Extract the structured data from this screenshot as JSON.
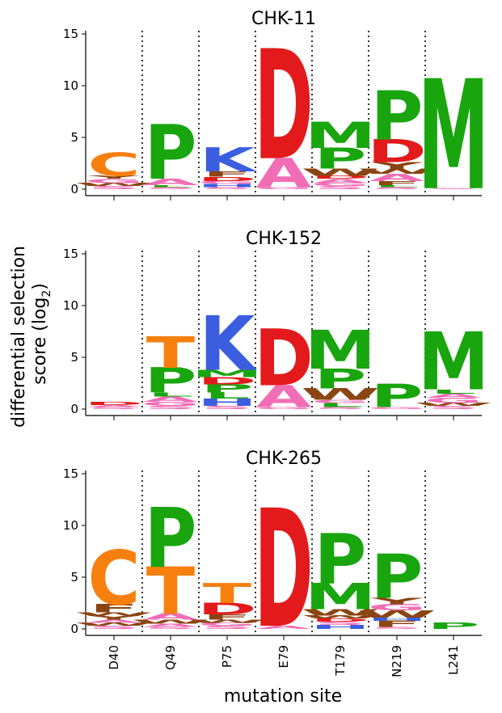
{
  "figure": {
    "ylabel_line1": "differential selection",
    "ylabel_line2_prefix": "score (log",
    "ylabel_line2_sub": "2",
    "ylabel_line2_suffix": ")",
    "xlabel": "mutation site"
  },
  "colors": {
    "C": "#f77f0e",
    "T": "#f77f0e",
    "P": "#19a50e",
    "M": "#19a50e",
    "A": "#f26db5",
    "G": "#f26db5",
    "S": "#f26db5",
    "D": "#e31a1c",
    "E": "#e31a1c",
    "K": "#3b5ee1",
    "H": "#3b5ee1",
    "R": "#3b5ee1",
    "W": "#8b4513",
    "Y": "#8b4513",
    "F": "#8b4513",
    "L": "#19a50e",
    "I": "#19a50e",
    "V": "#19a50e",
    "N": "#f26db5",
    "Q": "#f26db5"
  },
  "chart_data": [
    {
      "type": "logo",
      "title": "CHK-11",
      "categories": [
        "D40",
        "Q49",
        "P75",
        "E79",
        "T179",
        "N219",
        "L241"
      ],
      "ylim": [
        0,
        15
      ],
      "yticks": [
        "0",
        "5",
        "10",
        "15"
      ],
      "stacks": [
        [
          {
            "aa": "S",
            "value": 0.3
          },
          {
            "aa": "W",
            "value": 0.3
          },
          {
            "aa": "G",
            "value": 0.4
          },
          {
            "aa": "Y",
            "value": 0.3
          },
          {
            "aa": "C",
            "value": 2.2
          }
        ],
        [
          {
            "aa": "S",
            "value": 0.2
          },
          {
            "aa": "L",
            "value": 0.2
          },
          {
            "aa": "A",
            "value": 0.6
          },
          {
            "aa": "P",
            "value": 5.2
          }
        ],
        [
          {
            "aa": "S",
            "value": 0.2
          },
          {
            "aa": "H",
            "value": 0.3
          },
          {
            "aa": "G",
            "value": 0.3
          },
          {
            "aa": "D",
            "value": 0.4
          },
          {
            "aa": "F",
            "value": 0.5
          },
          {
            "aa": "K",
            "value": 2.3
          }
        ],
        [
          {
            "aa": "G",
            "value": 0.2
          },
          {
            "aa": "A",
            "value": 2.8
          },
          {
            "aa": "D",
            "value": 10.5
          }
        ],
        [
          {
            "aa": "S",
            "value": 0.3
          },
          {
            "aa": "G",
            "value": 0.3
          },
          {
            "aa": "A",
            "value": 0.4
          },
          {
            "aa": "D",
            "value": 0.3
          },
          {
            "aa": "W",
            "value": 0.7
          },
          {
            "aa": "P",
            "value": 2.0
          },
          {
            "aa": "M",
            "value": 2.5
          }
        ],
        [
          {
            "aa": "S",
            "value": 0.2
          },
          {
            "aa": "L",
            "value": 0.2
          },
          {
            "aa": "F",
            "value": 0.4
          },
          {
            "aa": "A",
            "value": 0.7
          },
          {
            "aa": "W",
            "value": 0.5
          },
          {
            "aa": "Y",
            "value": 0.6
          },
          {
            "aa": "D",
            "value": 2.2
          },
          {
            "aa": "P",
            "value": 4.7
          }
        ],
        [
          {
            "aa": "S",
            "value": 0.1
          },
          {
            "aa": "M",
            "value": 10.5
          }
        ]
      ]
    },
    {
      "type": "logo",
      "title": "CHK-152",
      "categories": [
        "D40",
        "Q49",
        "P75",
        "E79",
        "T179",
        "N219",
        "L241"
      ],
      "ylim": [
        0,
        15
      ],
      "yticks": [
        "0",
        "5",
        "10",
        "15"
      ],
      "stacks": [
        [
          {
            "aa": "S",
            "value": 0.2
          },
          {
            "aa": "A",
            "value": 0.2
          },
          {
            "aa": "D",
            "value": 0.3
          }
        ],
        [
          {
            "aa": "S",
            "value": 0.3
          },
          {
            "aa": "G",
            "value": 0.4
          },
          {
            "aa": "A",
            "value": 0.5
          },
          {
            "aa": "L",
            "value": 0.4
          },
          {
            "aa": "P",
            "value": 2.4
          },
          {
            "aa": "T",
            "value": 3.0
          }
        ],
        [
          {
            "aa": "S",
            "value": 0.3
          },
          {
            "aa": "H",
            "value": 0.7
          },
          {
            "aa": "L",
            "value": 0.6
          },
          {
            "aa": "P",
            "value": 0.8
          },
          {
            "aa": "D",
            "value": 0.7
          },
          {
            "aa": "M",
            "value": 0.7
          },
          {
            "aa": "K",
            "value": 5.2
          }
        ],
        [
          {
            "aa": "G",
            "value": 0.2
          },
          {
            "aa": "A",
            "value": 2.1
          },
          {
            "aa": "D",
            "value": 5.4
          }
        ],
        [
          {
            "aa": "S",
            "value": 0.2
          },
          {
            "aa": "L",
            "value": 0.4
          },
          {
            "aa": "G",
            "value": 0.3
          },
          {
            "aa": "W",
            "value": 1.1
          },
          {
            "aa": "P",
            "value": 1.9
          },
          {
            "aa": "M",
            "value": 3.7
          }
        ],
        [
          {
            "aa": "G",
            "value": 0.2
          },
          {
            "aa": "P",
            "value": 2.2
          }
        ],
        [
          {
            "aa": "S",
            "value": 0.3
          },
          {
            "aa": "W",
            "value": 0.3
          },
          {
            "aa": "G",
            "value": 0.5
          },
          {
            "aa": "A",
            "value": 0.4
          },
          {
            "aa": "L",
            "value": 0.4
          },
          {
            "aa": "M",
            "value": 5.5
          }
        ]
      ]
    },
    {
      "type": "logo",
      "title": "CHK-265",
      "categories": [
        "D40",
        "Q49",
        "P75",
        "E79",
        "T179",
        "N219",
        "L241"
      ],
      "ylim": [
        0,
        15
      ],
      "yticks": [
        "0",
        "5",
        "10",
        "15"
      ],
      "stacks": [
        [
          {
            "aa": "S",
            "value": 0.3
          },
          {
            "aa": "W",
            "value": 0.3
          },
          {
            "aa": "A",
            "value": 0.3
          },
          {
            "aa": "Y",
            "value": 0.4
          },
          {
            "aa": "W",
            "value": 0.3
          },
          {
            "aa": "F",
            "value": 0.8
          },
          {
            "aa": "C",
            "value": 5.2
          }
        ],
        [
          {
            "aa": "S",
            "value": 0.2
          },
          {
            "aa": "A",
            "value": 0.3
          },
          {
            "aa": "W",
            "value": 0.4
          },
          {
            "aa": "A",
            "value": 0.6
          },
          {
            "aa": "T",
            "value": 4.5
          },
          {
            "aa": "P",
            "value": 5.7
          }
        ],
        [
          {
            "aa": "S",
            "value": 0.3
          },
          {
            "aa": "G",
            "value": 0.3
          },
          {
            "aa": "W",
            "value": 0.3
          },
          {
            "aa": "F",
            "value": 0.5
          },
          {
            "aa": "D",
            "value": 1.1
          },
          {
            "aa": "T",
            "value": 1.9
          }
        ],
        [
          {
            "aa": "A",
            "value": 0.3
          },
          {
            "aa": "D",
            "value": 11.3
          }
        ],
        [
          {
            "aa": "H",
            "value": 0.4
          },
          {
            "aa": "S",
            "value": 0.3
          },
          {
            "aa": "D",
            "value": 0.3
          },
          {
            "aa": "W",
            "value": 0.3
          },
          {
            "aa": "W",
            "value": 0.6
          },
          {
            "aa": "M",
            "value": 2.5
          },
          {
            "aa": "P",
            "value": 4.8
          }
        ],
        [
          {
            "aa": "S",
            "value": 0.2
          },
          {
            "aa": "F",
            "value": 0.6
          },
          {
            "aa": "H",
            "value": 0.3
          },
          {
            "aa": "W",
            "value": 0.7
          },
          {
            "aa": "G",
            "value": 0.6
          },
          {
            "aa": "Y",
            "value": 0.6
          },
          {
            "aa": "P",
            "value": 4.2
          }
        ],
        [
          {
            "aa": "P",
            "value": 0.6
          }
        ]
      ]
    }
  ]
}
